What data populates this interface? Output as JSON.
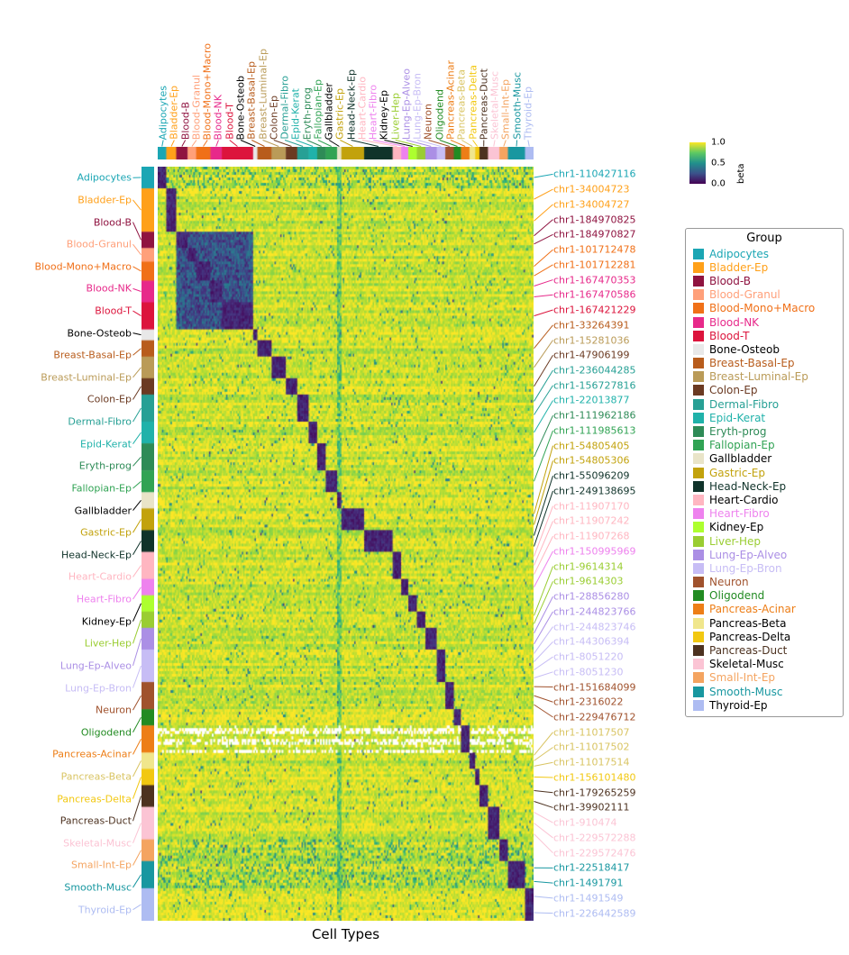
{
  "figure": {
    "xlabel": "Cell Types",
    "legend_title": "Group",
    "colorbar": {
      "label": "beta",
      "ticks": [
        "1.0",
        "0.5",
        "0.0"
      ]
    }
  },
  "chart_data": {
    "type": "heatmap",
    "colormap": "viridis",
    "value_label": "beta",
    "value_range": [
      0,
      1
    ],
    "xlabel": "Cell Types",
    "legend_position": "right",
    "groups": [
      {
        "name": "Adipocytes",
        "color": "#1ba6b4",
        "rows": 8,
        "cols": 6
      },
      {
        "name": "Bladder-Ep",
        "color": "#ffa019",
        "rows": 16,
        "cols": 7
      },
      {
        "name": "Blood-B",
        "color": "#8f1340",
        "rows": 6,
        "cols": 8
      },
      {
        "name": "Blood-Granul",
        "color": "#ffa07a",
        "rows": 5,
        "cols": 6
      },
      {
        "name": "Blood-Mono+Macro",
        "color": "#f07018",
        "rows": 7,
        "cols": 10
      },
      {
        "name": "Blood-NK",
        "color": "#e7298a",
        "rows": 8,
        "cols": 8
      },
      {
        "name": "Blood-T",
        "color": "#dc143c",
        "rows": 10,
        "cols": 22
      },
      {
        "name": "Bone-Osteob",
        "color": "#e8e8e8",
        "text": "#000000",
        "rows": 4,
        "cols": 3
      },
      {
        "name": "Breast-Basal-Ep",
        "color": "#b85c1c",
        "rows": 6,
        "cols": 10
      },
      {
        "name": "Breast-Luminal-Ep",
        "color": "#ba9b58",
        "rows": 8,
        "cols": 10
      },
      {
        "name": "Colon-Ep",
        "color": "#6b3a22",
        "rows": 6,
        "cols": 8
      },
      {
        "name": "Dermal-Fibro",
        "color": "#27a095",
        "rows": 10,
        "cols": 8
      },
      {
        "name": "Epid-Kerat",
        "color": "#20b2aa",
        "rows": 8,
        "cols": 6
      },
      {
        "name": "Eryth-prog",
        "color": "#2e8b57",
        "rows": 10,
        "cols": 6
      },
      {
        "name": "Fallopian-Ep",
        "color": "#31a354",
        "rows": 8,
        "cols": 8
      },
      {
        "name": "Gallbladder",
        "color": "#e9e4c8",
        "text": "#000000",
        "rows": 6,
        "cols": 3
      },
      {
        "name": "Gastric-Ep",
        "color": "#c2a20c",
        "rows": 8,
        "cols": 16
      },
      {
        "name": "Head-Neck-Ep",
        "color": "#10332a",
        "rows": 8,
        "cols": 20
      },
      {
        "name": "Heart-Cardio",
        "color": "#ffb6c1",
        "legend_text": "#000000",
        "rows": 10,
        "cols": 6
      },
      {
        "name": "Heart-Fibro",
        "color": "#ee82ee",
        "rows": 6,
        "cols": 5
      },
      {
        "name": "Kidney-Ep",
        "color": "#adff2f",
        "text": "#000000",
        "rows": 6,
        "cols": 6
      },
      {
        "name": "Liver-Hep",
        "color": "#9acd32",
        "rows": 6,
        "cols": 6
      },
      {
        "name": "Lung-Ep-Alveo",
        "color": "#ab8fe5",
        "rows": 8,
        "cols": 8
      },
      {
        "name": "Lung-Ep-Bron",
        "color": "#c7bdf5",
        "rows": 12,
        "cols": 6
      },
      {
        "name": "Neuron",
        "color": "#a0522d",
        "rows": 10,
        "cols": 6
      },
      {
        "name": "Oligodend",
        "color": "#228b22",
        "rows": 6,
        "cols": 5
      },
      {
        "name": "Pancreas-Acinar",
        "color": "#ed7e17",
        "rows": 10,
        "cols": 6
      },
      {
        "name": "Pancreas-Beta",
        "color": "#f0e68c",
        "text": "#d9c463",
        "legend_text": "#000000",
        "rows": 6,
        "cols": 4
      },
      {
        "name": "Pancreas-Delta",
        "color": "#f2c811",
        "legend_text": "#000000",
        "rows": 6,
        "cols": 3
      },
      {
        "name": "Pancreas-Duct",
        "color": "#4d3220",
        "rows": 8,
        "cols": 6
      },
      {
        "name": "Skeletal-Musc",
        "color": "#fbc4d4",
        "legend_text": "#000000",
        "rows": 12,
        "cols": 8
      },
      {
        "name": "Small-Int-Ep",
        "color": "#f4a460",
        "rows": 8,
        "cols": 6
      },
      {
        "name": "Smooth-Musc",
        "color": "#1897a0",
        "rows": 10,
        "cols": 12
      },
      {
        "name": "Thyroid-Ep",
        "color": "#aebcf2",
        "legend_text": "#000000",
        "rows": 12,
        "cols": 6
      }
    ],
    "pattern": {
      "background_beta_range": [
        0.8,
        1.0
      ],
      "diagonal_block_beta_range": [
        0.0,
        0.2
      ],
      "blood_cross_beta_range": [
        0.1,
        0.45
      ],
      "blood_groups": [
        "Blood-B",
        "Blood-Granul",
        "Blood-Mono+Macro",
        "Blood-NK",
        "Blood-T"
      ],
      "speckle_row_groups": [
        "Adipocytes",
        "Smooth-Musc",
        "Small-Int-Ep"
      ],
      "muted_column_groups": [
        "Gallbladder"
      ],
      "missing_row_groups": [
        "Pancreas-Acinar"
      ],
      "note": "Each row block of cell-type-specific chr1 marker CpGs is unmethylated (low beta, dark blue) in its matching cell-type column block and methylated (high beta, yellow) elsewhere; blood subtypes share partial hypomethylation; Pancreas-Acinar rows contain missing (white) values."
    },
    "right_labels": [
      {
        "text": "chr1-110427116",
        "group": "Adipocytes"
      },
      {
        "text": "chr1-34004723",
        "group": "Bladder-Ep"
      },
      {
        "text": "chr1-34004727",
        "group": "Bladder-Ep"
      },
      {
        "text": "chr1-184970825",
        "group": "Blood-B"
      },
      {
        "text": "chr1-184970827",
        "group": "Blood-B"
      },
      {
        "text": "chr1-101712478",
        "group": "Blood-Mono+Macro"
      },
      {
        "text": "chr1-101712281",
        "group": "Blood-Mono+Macro"
      },
      {
        "text": "chr1-167470353",
        "group": "Blood-NK"
      },
      {
        "text": "chr1-167470586",
        "group": "Blood-NK"
      },
      {
        "text": "chr1-167421229",
        "group": "Blood-T"
      },
      {
        "text": "chr1-33264391",
        "group": "Breast-Basal-Ep"
      },
      {
        "text": "chr1-15281036",
        "group": "Breast-Luminal-Ep"
      },
      {
        "text": "chr1-47906199",
        "group": "Colon-Ep"
      },
      {
        "text": "chr1-236044285",
        "group": "Dermal-Fibro"
      },
      {
        "text": "chr1-156727816",
        "group": "Dermal-Fibro"
      },
      {
        "text": "chr1-22013877",
        "group": "Epid-Kerat"
      },
      {
        "text": "chr1-111962186",
        "group": "Eryth-prog"
      },
      {
        "text": "chr1-111985613",
        "group": "Fallopian-Ep"
      },
      {
        "text": "chr1-54805405",
        "group": "Gastric-Ep"
      },
      {
        "text": "chr1-54805306",
        "group": "Gastric-Ep"
      },
      {
        "text": "chr1-55096209",
        "group": "Head-Neck-Ep"
      },
      {
        "text": "chr1-249138695",
        "group": "Head-Neck-Ep"
      },
      {
        "text": "chr1-11907170",
        "group": "Heart-Cardio"
      },
      {
        "text": "chr1-11907242",
        "group": "Heart-Cardio"
      },
      {
        "text": "chr1-11907268",
        "group": "Heart-Cardio"
      },
      {
        "text": "chr1-150995969",
        "group": "Heart-Fibro"
      },
      {
        "text": "chr1-9614314",
        "group": "Liver-Hep"
      },
      {
        "text": "chr1-9614303",
        "group": "Liver-Hep"
      },
      {
        "text": "chr1-28856280",
        "group": "Lung-Ep-Alveo"
      },
      {
        "text": "chr1-244823766",
        "group": "Lung-Ep-Alveo"
      },
      {
        "text": "chr1-244823746",
        "group": "Lung-Ep-Bron"
      },
      {
        "text": "chr1-44306394",
        "group": "Lung-Ep-Bron"
      },
      {
        "text": "chr1-8051220",
        "group": "Lung-Ep-Bron"
      },
      {
        "text": "chr1-8051230",
        "group": "Lung-Ep-Bron"
      },
      {
        "text": "chr1-151684099",
        "group": "Neuron"
      },
      {
        "text": "chr1-2316022",
        "group": "Neuron"
      },
      {
        "text": "chr1-229476712",
        "group": "Neuron"
      },
      {
        "text": "chr1-11017507",
        "group": "Pancreas-Beta"
      },
      {
        "text": "chr1-11017502",
        "group": "Pancreas-Beta"
      },
      {
        "text": "chr1-11017514",
        "group": "Pancreas-Beta"
      },
      {
        "text": "chr1-156101480",
        "group": "Pancreas-Delta"
      },
      {
        "text": "chr1-179265259",
        "group": "Pancreas-Duct"
      },
      {
        "text": "chr1-39902111",
        "group": "Pancreas-Duct"
      },
      {
        "text": "chr1-910474",
        "group": "Skeletal-Musc"
      },
      {
        "text": "chr1-229572288",
        "group": "Skeletal-Musc"
      },
      {
        "text": "chr1-229572476",
        "group": "Skeletal-Musc"
      },
      {
        "text": "chr1-22518417",
        "group": "Smooth-Musc"
      },
      {
        "text": "chr1-1491791",
        "group": "Smooth-Musc"
      },
      {
        "text": "chr1-1491549",
        "group": "Thyroid-Ep"
      },
      {
        "text": "chr1-226442589",
        "group": "Thyroid-Ep"
      }
    ]
  }
}
